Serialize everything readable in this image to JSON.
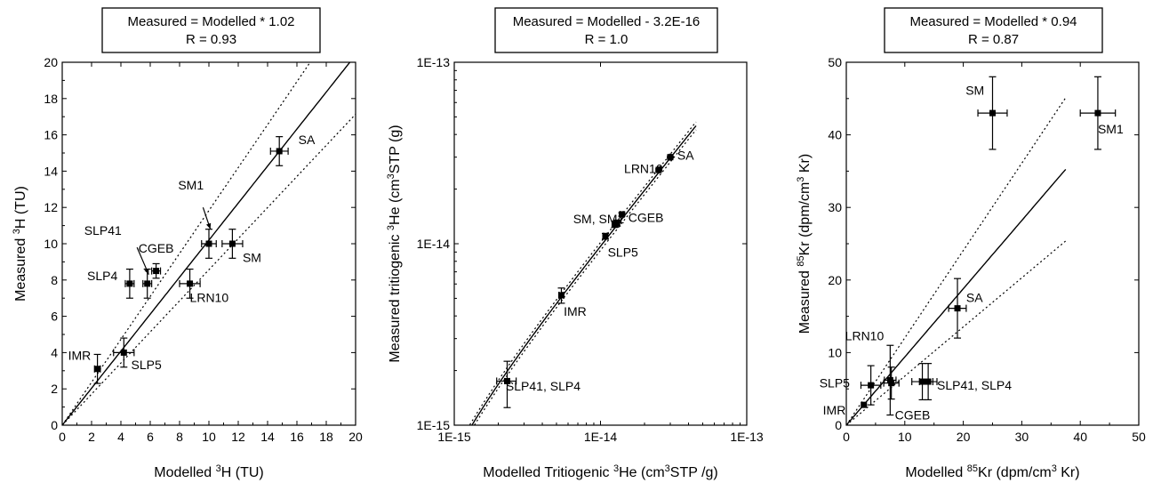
{
  "chart_data": [
    {
      "type": "scatter",
      "box_lines": [
        "Measured = Modelled * 1.02",
        "R = 0.93"
      ],
      "xlabel": {
        "pre": "Modelled ",
        "sup": "3",
        "post": "H (TU)"
      },
      "ylabel": {
        "pre": "Measured ",
        "sup": "3",
        "post": "H (TU)"
      },
      "scale": "linear",
      "xlim": [
        0,
        20
      ],
      "ylim": [
        0,
        20
      ],
      "xticks": [
        0,
        2,
        4,
        6,
        8,
        10,
        12,
        14,
        16,
        18,
        20
      ],
      "yticks": [
        0,
        2,
        4,
        6,
        8,
        10,
        12,
        14,
        16,
        18,
        20
      ],
      "xtick_labels": [
        "0",
        "2",
        "4",
        "6",
        "8",
        "10",
        "12",
        "14",
        "16",
        "18",
        "20"
      ],
      "ytick_labels": [
        "0",
        "2",
        "4",
        "6",
        "8",
        "10",
        "12",
        "14",
        "16",
        "18",
        "20"
      ],
      "fit_slope": 1.02,
      "fit_offset": 0,
      "band_factor": 0.16,
      "points": [
        {
          "x": 2.4,
          "y": 3.1,
          "xerr": 0.2,
          "yerr": 0.8
        },
        {
          "x": 4.2,
          "y": 4.0,
          "xerr": 0.7,
          "yerr": 0.8
        },
        {
          "x": 4.6,
          "y": 7.8,
          "xerr": 0.3,
          "yerr": 0.8
        },
        {
          "x": 5.8,
          "y": 7.8,
          "xerr": 0.3,
          "yerr": 0.8
        },
        {
          "x": 6.4,
          "y": 8.5,
          "xerr": 0.3,
          "yerr": 0.4
        },
        {
          "x": 8.7,
          "y": 7.8,
          "xerr": 0.7,
          "yerr": 0.8
        },
        {
          "x": 10.0,
          "y": 10.0,
          "xerr": 0.5,
          "yerr": 0.8
        },
        {
          "x": 11.6,
          "y": 10.0,
          "xerr": 0.7,
          "yerr": 0.8
        },
        {
          "x": 14.8,
          "y": 15.1,
          "xerr": 0.6,
          "yerr": 0.8
        }
      ],
      "labels": [
        {
          "text": "IMR",
          "x": 0.4,
          "y": 3.6
        },
        {
          "text": "SLP5",
          "x": 4.7,
          "y": 3.1
        },
        {
          "text": "SLP4",
          "x": 1.7,
          "y": 8.0
        },
        {
          "text": "SLP41",
          "x": 1.5,
          "y": 10.5
        },
        {
          "text": "CGEB",
          "x": 5.2,
          "y": 9.5
        },
        {
          "text": "LRN10",
          "x": 8.7,
          "y": 6.8
        },
        {
          "text": "SM",
          "x": 12.3,
          "y": 9.0
        },
        {
          "text": "SM1",
          "x": 7.9,
          "y": 13.0
        },
        {
          "text": "SA",
          "x": 16.1,
          "y": 15.5
        }
      ],
      "arrows": [
        {
          "from": [
            5.1,
            9.8
          ],
          "to": [
            5.9,
            8.3
          ]
        },
        {
          "from": [
            9.6,
            12.0
          ],
          "to": [
            10.1,
            10.8
          ]
        }
      ]
    },
    {
      "type": "scatter",
      "box_lines": [
        "Measured = Modelled - 3.2E-16",
        "R = 1.0"
      ],
      "xlabel": {
        "pre": "Modelled Tritiogenic ",
        "sup": "3",
        "post": "He (cm",
        "sup2": "3",
        "post2": "STP /g)"
      },
      "ylabel": {
        "pre": "Measured tritiogenic ",
        "sup": "3",
        "post": "He (cm",
        "sup2": "3",
        "post2": "STP (g)"
      },
      "scale": "log",
      "xlim": [
        1e-15,
        1e-13
      ],
      "ylim": [
        1e-15,
        1e-13
      ],
      "xticks": [
        1e-15,
        1e-14,
        1e-13
      ],
      "yticks": [
        1e-15,
        1e-14,
        1e-13
      ],
      "xtick_labels": [
        "1E-15",
        "1E-14",
        "1E-13"
      ],
      "ytick_labels": [
        "1E-15",
        "1E-14",
        "1E-13"
      ],
      "fit_slope": 1,
      "fit_offset": -3.2e-16,
      "band_factor": 0.05,
      "points": [
        {
          "x": 2.3e-15,
          "y": 1.75e-15,
          "xerr": 3.5e-16,
          "yerr": 5e-16
        },
        {
          "x": 5.4e-15,
          "y": 5.2e-15,
          "xerr": 2e-16,
          "yerr": 5e-16
        },
        {
          "x": 1.08e-14,
          "y": 1.1e-14,
          "xerr": 3e-16,
          "yerr": 4e-16
        },
        {
          "x": 1.25e-14,
          "y": 1.28e-14,
          "xerr": 4e-16,
          "yerr": 5e-16
        },
        {
          "x": 1.3e-14,
          "y": 1.3e-14,
          "xerr": 4e-16,
          "yerr": 5e-16
        },
        {
          "x": 1.4e-14,
          "y": 1.45e-14,
          "xerr": 3e-16,
          "yerr": 3e-16
        },
        {
          "x": 2.5e-14,
          "y": 2.55e-14,
          "xerr": 3e-16,
          "yerr": 3e-16
        },
        {
          "x": 3e-14,
          "y": 3e-14,
          "xerr": 3e-16,
          "yerr": 3e-16
        }
      ],
      "labels": [
        {
          "text": "SLP41, SLP4",
          "x": 2.25e-15,
          "y": 1.55e-15
        },
        {
          "text": "IMR",
          "x": 5.6e-15,
          "y": 4e-15
        },
        {
          "text": "SLP5",
          "x": 1.12e-14,
          "y": 8.5e-15
        },
        {
          "text": "SM, SM1",
          "x": 6.5e-15,
          "y": 1.3e-14
        },
        {
          "text": "CGEB",
          "x": 1.55e-14,
          "y": 1.32e-14
        },
        {
          "text": "LRN10",
          "x": 1.45e-14,
          "y": 2.45e-14
        },
        {
          "text": "SA",
          "x": 3.35e-14,
          "y": 2.9e-14
        }
      ],
      "arrows": []
    },
    {
      "type": "scatter",
      "box_lines": [
        "Measured = Modelled * 0.94",
        "R = 0.87"
      ],
      "xlabel": {
        "pre": "Modelled ",
        "sup": "85",
        "post": "Kr (dpm/cm",
        "sup2": "3",
        "post2": " Kr)"
      },
      "ylabel": {
        "pre": "Measured ",
        "sup": "85",
        "post": "Kr (dpm/cm",
        "sup2": "3",
        "post2": " Kr)"
      },
      "scale": "linear",
      "xlim": [
        0,
        50
      ],
      "ylim": [
        0,
        50
      ],
      "xticks": [
        0,
        10,
        20,
        30,
        40,
        50
      ],
      "yticks": [
        0,
        10,
        20,
        30,
        40,
        50
      ],
      "xtick_labels": [
        "0",
        "10",
        "20",
        "30",
        "40",
        "50"
      ],
      "ytick_labels": [
        "0",
        "10",
        "20",
        "30",
        "40",
        "50"
      ],
      "fit_slope": 0.94,
      "fit_offset": 0,
      "band_factor": 0.28,
      "x_end": 37.5,
      "points": [
        {
          "x": 3.0,
          "y": 2.8,
          "xerr": 0.0,
          "yerr": 0.0
        },
        {
          "x": 4.2,
          "y": 5.5,
          "xerr": 1.7,
          "yerr": 2.7
        },
        {
          "x": 7.5,
          "y": 6.2,
          "xerr": 1.0,
          "yerr": 4.8
        },
        {
          "x": 7.7,
          "y": 5.8,
          "xerr": 1.3,
          "yerr": 2.2
        },
        {
          "x": 13.0,
          "y": 6.0,
          "xerr": 1.8,
          "yerr": 2.5
        },
        {
          "x": 14.0,
          "y": 6.0,
          "xerr": 1.5,
          "yerr": 2.5
        },
        {
          "x": 19.0,
          "y": 16.1,
          "xerr": 1.5,
          "yerr": 4.1
        },
        {
          "x": 25.0,
          "y": 43.0,
          "xerr": 2.5,
          "yerr": 5.0
        },
        {
          "x": 43.0,
          "y": 43.0,
          "xerr": 3.0,
          "yerr": 5.0
        }
      ],
      "labels": [
        {
          "text": "IMR",
          "x": -4.0,
          "y": 1.5
        },
        {
          "text": "SLP5",
          "x": -4.6,
          "y": 5.2
        },
        {
          "text": "LRN10",
          "x": -0.2,
          "y": 11.7
        },
        {
          "text": "CGEB",
          "x": 8.3,
          "y": 0.8
        },
        {
          "text": "SLP41, SLP4",
          "x": 15.5,
          "y": 4.9
        },
        {
          "text": "SA",
          "x": 20.5,
          "y": 17.0
        },
        {
          "text": "SM",
          "x": 20.4,
          "y": 45.5
        },
        {
          "text": "SM1",
          "x": 43.0,
          "y": 40.2
        }
      ],
      "arrows": []
    }
  ]
}
